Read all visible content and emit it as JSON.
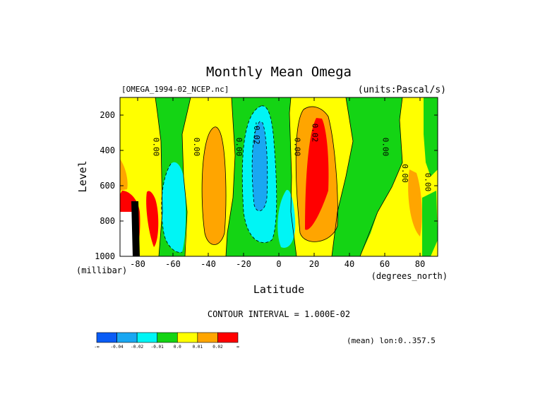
{
  "chart_data": {
    "type": "heatmap",
    "title": "Monthly Mean Omega",
    "subtitle_left": "[OMEGA_1994-02_NCEP.nc]",
    "subtitle_right": "(units:Pascal/s)",
    "xlabel": "Latitude",
    "xunits": "(degrees_north)",
    "ylabel": "Level",
    "yunits": "(millibar)",
    "xlim": [
      -90,
      90
    ],
    "ylim": [
      1000,
      100
    ],
    "x_ticks": [
      -80,
      -60,
      -40,
      -20,
      0,
      20,
      40,
      60,
      80
    ],
    "y_ticks": [
      1000,
      800,
      600,
      400,
      200
    ],
    "contour_interval_text": "CONTOUR INTERVAL = 1.000E-02",
    "note_text": "(mean) lon:0..357.5",
    "contour_labels": [
      {
        "text": "0.00",
        "lat": -71,
        "lev": 380
      },
      {
        "text": "0.00",
        "lat": -48,
        "lev": 380
      },
      {
        "text": "0.00",
        "lat": -24,
        "lev": 380
      },
      {
        "text": "-0.02",
        "lat": -14,
        "lev": 300
      },
      {
        "text": "0.00",
        "lat": 9,
        "lev": 380
      },
      {
        "text": "0.02",
        "lat": 19,
        "lev": 300
      },
      {
        "text": "0.00",
        "lat": 59,
        "lev": 380
      },
      {
        "text": "0.00",
        "lat": 70,
        "lev": 530
      },
      {
        "text": "0.00",
        "lat": 83,
        "lev": 580
      }
    ],
    "colorbar": {
      "colors": [
        "#0a5cf5",
        "#19a7f2",
        "#00f5f5",
        "#14d414",
        "#ffff00",
        "#ffa500",
        "#ff0000"
      ],
      "labels": [
        "-∞",
        "-0.04",
        "-0.02",
        "-0.01",
        "0.0",
        "0.01",
        "0.02",
        "∞"
      ]
    },
    "fill_colors": {
      "blue": "#19a7f2",
      "cyan": "#00f5f5",
      "green": "#14d414",
      "yellow": "#ffff00",
      "orange": "#ffa500",
      "red": "#ff0000",
      "missing": "#ffffff",
      "dark": "#000000"
    }
  }
}
